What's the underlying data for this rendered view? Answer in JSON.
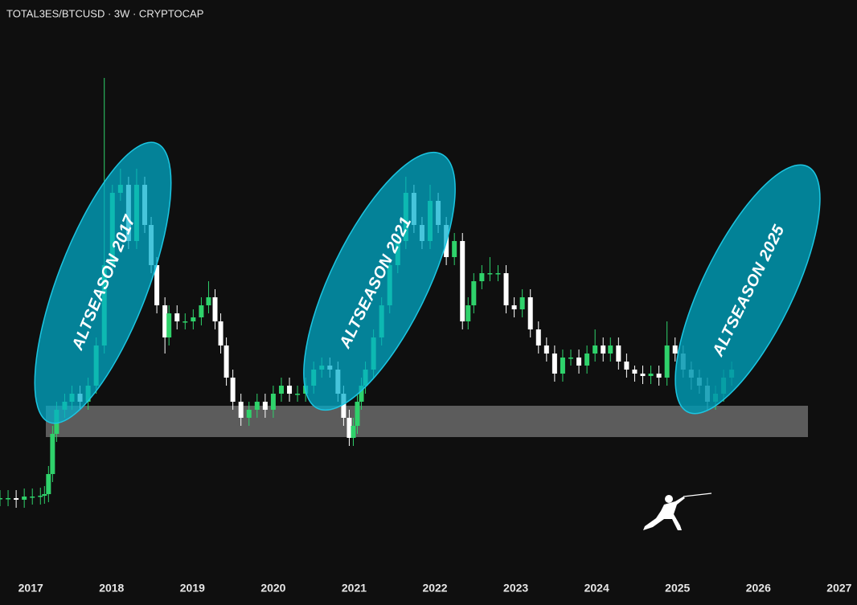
{
  "chart_data": {
    "type": "candlestick",
    "title": "TOTAL3ES/BTCUSD · 3W · CRYPTOCAP",
    "annotations": [
      "ALTSEASON 2017",
      "ALTSEASON 2021",
      "ALTSEASON 2025"
    ],
    "up_color": "#2fd26b",
    "down_color": "#ffffff",
    "xlim": [
      2016.62,
      2027.22
    ],
    "xticks": [
      2017,
      2018,
      2019,
      2020,
      2021,
      2022,
      2023,
      2024,
      2025,
      2026,
      2027
    ],
    "ylim": [
      0,
      640
    ],
    "x": [
      2016.62,
      2016.72,
      2016.82,
      2016.92,
      2017.02,
      2017.12,
      2017.17,
      2017.22,
      2017.27,
      2017.32,
      2017.42,
      2017.51,
      2017.61,
      2017.71,
      2017.81,
      2017.91,
      2018.01,
      2018.11,
      2018.21,
      2018.31,
      2018.41,
      2018.49,
      2018.56,
      2018.66,
      2018.71,
      2018.81,
      2018.91,
      2019.01,
      2019.11,
      2019.2,
      2019.28,
      2019.35,
      2019.42,
      2019.5,
      2019.6,
      2019.7,
      2019.8,
      2019.9,
      2020,
      2020.1,
      2020.2,
      2020.3,
      2020.4,
      2020.5,
      2020.6,
      2020.7,
      2020.8,
      2020.87,
      2020.94,
      2020.99,
      2021.04,
      2021.09,
      2021.14,
      2021.24,
      2021.34,
      2021.44,
      2021.54,
      2021.64,
      2021.74,
      2021.84,
      2021.94,
      2022.04,
      2022.14,
      2022.24,
      2022.34,
      2022.41,
      2022.48,
      2022.58,
      2022.68,
      2022.78,
      2022.88,
      2022.98,
      2023.08,
      2023.18,
      2023.28,
      2023.38,
      2023.48,
      2023.58,
      2023.68,
      2023.78,
      2023.88,
      2023.98,
      2024.08,
      2024.17,
      2024.27,
      2024.37,
      2024.47,
      2024.57,
      2024.67,
      2024.77,
      2024.87,
      2024.97,
      2025.07,
      2025.17,
      2025.27,
      2025.37,
      2025.47,
      2025.57,
      2025.67
    ],
    "open": [
      80,
      80,
      80,
      78,
      82,
      82,
      83,
      85,
      110,
      160,
      190,
      200,
      210,
      200,
      220,
      270,
      370,
      460,
      470,
      400,
      470,
      420,
      370,
      320,
      280,
      310,
      300,
      300,
      305,
      320,
      330,
      300,
      270,
      230,
      200,
      180,
      190,
      200,
      190,
      210,
      220,
      210,
      210,
      220,
      240,
      245,
      240,
      210,
      180,
      155,
      170,
      200,
      220,
      240,
      280,
      320,
      370,
      400,
      460,
      420,
      400,
      450,
      420,
      380,
      400,
      300,
      320,
      350,
      360,
      360,
      360,
      320,
      315,
      330,
      290,
      270,
      260,
      235,
      255,
      255,
      245,
      260,
      270,
      260,
      270,
      250,
      240,
      235,
      232,
      235,
      230,
      270,
      260,
      240,
      230,
      220,
      200,
      210,
      230
    ],
    "high": [
      90,
      90,
      90,
      92,
      92,
      93,
      95,
      120,
      170,
      200,
      210,
      220,
      220,
      230,
      280,
      603,
      470,
      490,
      480,
      490,
      480,
      430,
      380,
      330,
      320,
      320,
      310,
      315,
      330,
      350,
      340,
      310,
      280,
      240,
      210,
      200,
      210,
      210,
      220,
      230,
      230,
      220,
      230,
      250,
      255,
      255,
      250,
      220,
      190,
      180,
      210,
      230,
      250,
      290,
      330,
      380,
      410,
      480,
      470,
      430,
      470,
      460,
      430,
      410,
      410,
      330,
      360,
      370,
      380,
      370,
      370,
      330,
      340,
      340,
      300,
      280,
      270,
      265,
      265,
      265,
      270,
      290,
      280,
      280,
      280,
      260,
      245,
      245,
      245,
      245,
      300,
      280,
      270,
      250,
      240,
      230,
      220,
      240,
      250
    ],
    "low": [
      70,
      70,
      68,
      68,
      72,
      72,
      73,
      75,
      100,
      150,
      180,
      190,
      190,
      190,
      210,
      260,
      360,
      450,
      390,
      390,
      410,
      360,
      310,
      260,
      270,
      290,
      290,
      290,
      295,
      310,
      290,
      260,
      220,
      190,
      170,
      170,
      180,
      180,
      180,
      200,
      200,
      200,
      200,
      210,
      230,
      230,
      200,
      170,
      145,
      145,
      160,
      190,
      210,
      230,
      270,
      310,
      360,
      390,
      410,
      390,
      390,
      410,
      370,
      370,
      290,
      290,
      310,
      340,
      350,
      350,
      310,
      305,
      305,
      280,
      260,
      250,
      225,
      225,
      245,
      235,
      235,
      250,
      250,
      250,
      240,
      230,
      225,
      222,
      222,
      220,
      220,
      250,
      230,
      215,
      210,
      190,
      190,
      200,
      220
    ],
    "close": [
      80,
      80,
      78,
      82,
      82,
      83,
      85,
      110,
      160,
      190,
      200,
      210,
      200,
      220,
      270,
      370,
      460,
      470,
      400,
      470,
      420,
      370,
      320,
      280,
      310,
      300,
      300,
      305,
      320,
      330,
      300,
      270,
      230,
      200,
      180,
      190,
      200,
      190,
      210,
      220,
      210,
      210,
      220,
      240,
      245,
      240,
      210,
      180,
      155,
      170,
      200,
      220,
      240,
      280,
      320,
      370,
      400,
      460,
      420,
      400,
      450,
      420,
      380,
      400,
      300,
      320,
      350,
      360,
      360,
      360,
      320,
      315,
      330,
      290,
      270,
      260,
      235,
      255,
      255,
      245,
      260,
      270,
      260,
      270,
      250,
      240,
      235,
      232,
      235,
      230,
      270,
      260,
      240,
      230,
      220,
      200,
      210,
      230,
      240
    ]
  }
}
